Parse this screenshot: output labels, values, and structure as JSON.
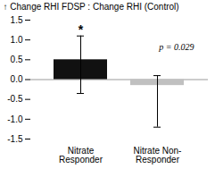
{
  "chart_data": {
    "type": "bar",
    "categories": [
      "Nitrate Responder",
      "Nitrate Non-Responder"
    ],
    "values": [
      0.5,
      -0.15
    ],
    "colors": [
      "#111111",
      "#c0c0c0"
    ],
    "error_low": [
      0.85,
      1.05
    ],
    "error_high": [
      0.6,
      0.25
    ],
    "ylabel": "Change RHI FDSP : Change RHI (Control)",
    "ylim": [
      -1.5,
      1.5
    ],
    "yticks": [
      -1.5,
      {
        "value": -1.0,
        "label": "-1.0"
      },
      -0.5,
      {
        "value": 0.0,
        "label": "0.0"
      },
      0.5,
      {
        "value": 1.0,
        "label": "1.0"
      },
      1.5
    ],
    "annotations": [
      {
        "text": "*",
        "category": "Nitrate Responder"
      },
      {
        "text": "p = 0.029"
      }
    ],
    "grid": false
  }
}
